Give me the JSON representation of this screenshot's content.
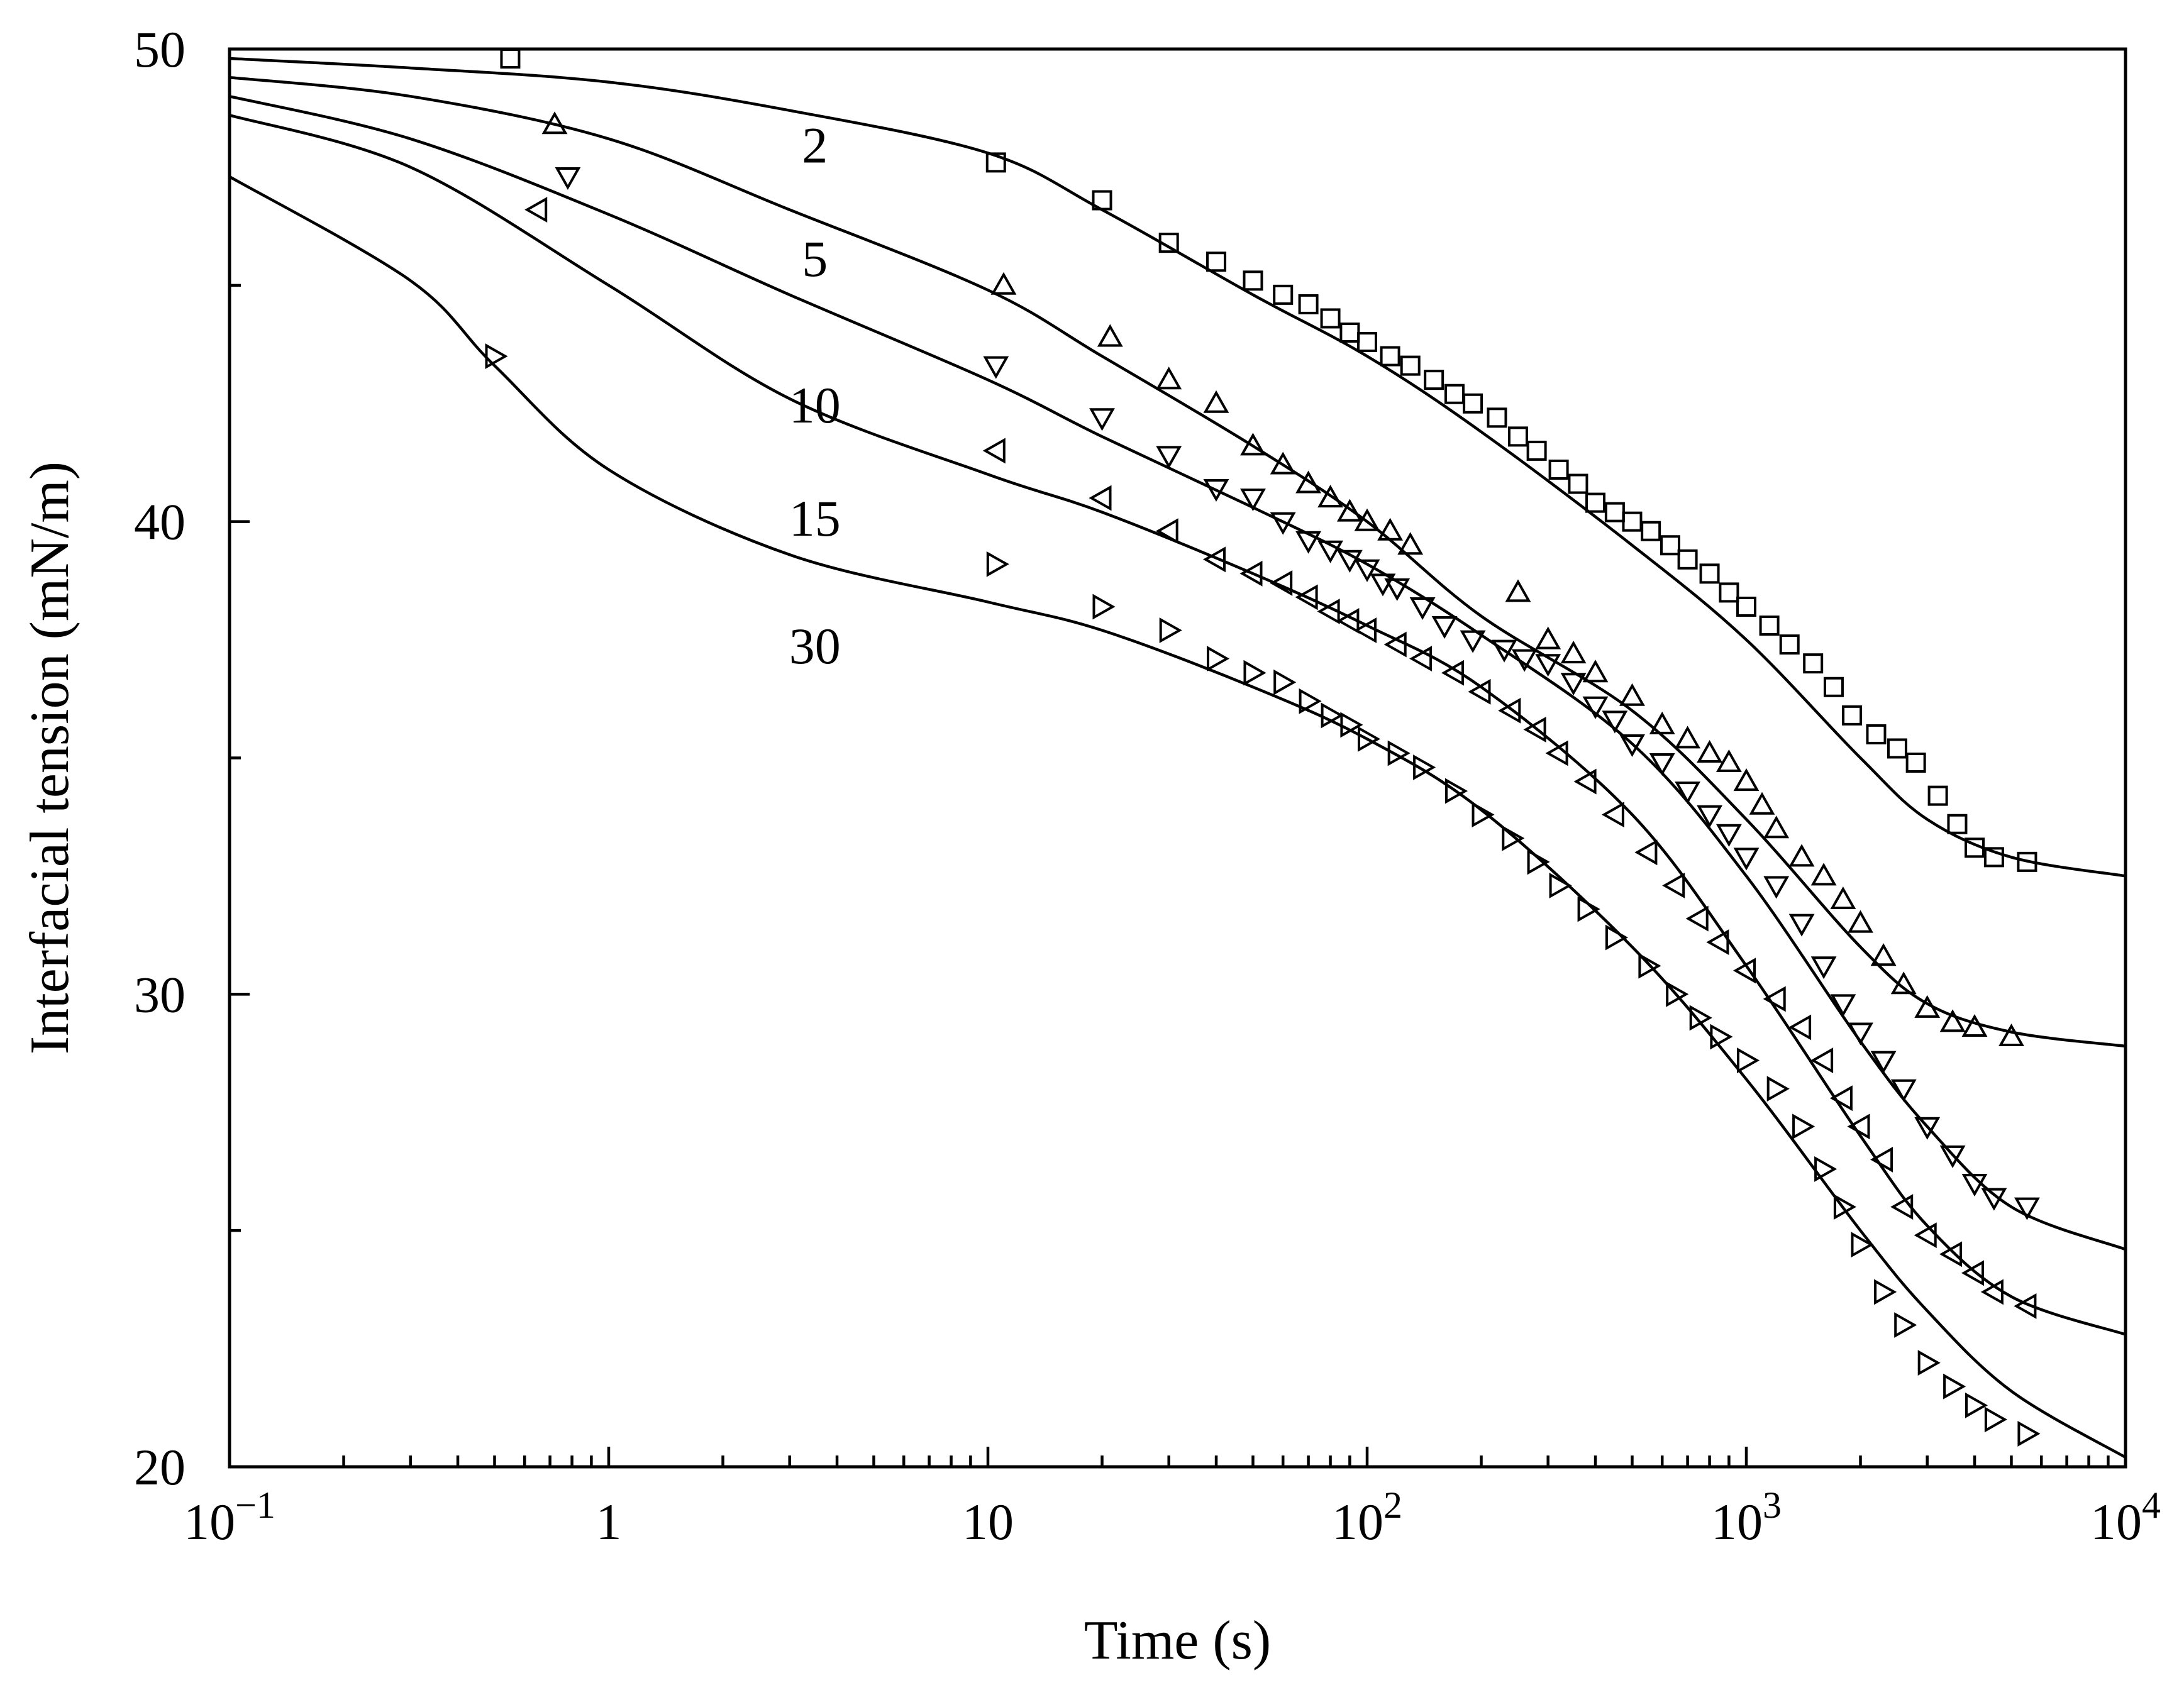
{
  "chart_data": {
    "type": "line",
    "title": "",
    "xlabel": "Time (s)",
    "ylabel": "Interfacial tension (mN/m)",
    "xscale": "log",
    "xlim": [
      0.1,
      10000
    ],
    "ylim": [
      20,
      50
    ],
    "grid": false,
    "x_tick_labels": [
      {
        "value": 0.1,
        "base": "10",
        "exp": "−1"
      },
      {
        "value": 1,
        "base": "1",
        "exp": ""
      },
      {
        "value": 10,
        "base": "10",
        "exp": ""
      },
      {
        "value": 100,
        "base": "10",
        "exp": "2"
      },
      {
        "value": 1000,
        "base": "10",
        "exp": "3"
      },
      {
        "value": 10000,
        "base": "10",
        "exp": "4"
      }
    ],
    "y_tick_labels": [
      {
        "value": 20,
        "text": "20"
      },
      {
        "value": 30,
        "text": "30"
      },
      {
        "value": 40,
        "text": "40"
      },
      {
        "value": 50,
        "text": "50"
      }
    ],
    "y_minor_ticks": [
      25,
      35,
      45
    ],
    "series": [
      {
        "name": "2",
        "marker": "square",
        "label_text": "2",
        "label_at": {
          "x": 3.0,
          "y": 47.6
        },
        "fit": [
          [
            0.1,
            49.8
          ],
          [
            0.3,
            49.6
          ],
          [
            1,
            49.3
          ],
          [
            3,
            48.7
          ],
          [
            10,
            47.8
          ],
          [
            20,
            46.6
          ],
          [
            50,
            44.8
          ],
          [
            100,
            43.5
          ],
          [
            200,
            41.9
          ],
          [
            500,
            39.5
          ],
          [
            1000,
            37.5
          ],
          [
            2000,
            35.0
          ],
          [
            3000,
            33.7
          ],
          [
            5000,
            32.9
          ],
          [
            10000,
            32.5
          ]
        ],
        "points": [
          [
            0.55,
            49.8
          ],
          [
            10.5,
            47.6
          ],
          [
            20,
            46.8
          ],
          [
            30,
            45.9
          ],
          [
            40,
            45.5
          ],
          [
            50,
            45.1
          ],
          [
            60,
            44.8
          ],
          [
            70,
            44.6
          ],
          [
            80,
            44.3
          ],
          [
            90,
            44.0
          ],
          [
            100,
            43.8
          ],
          [
            115,
            43.5
          ],
          [
            130,
            43.3
          ],
          [
            150,
            43.0
          ],
          [
            170,
            42.7
          ],
          [
            190,
            42.5
          ],
          [
            220,
            42.2
          ],
          [
            250,
            41.8
          ],
          [
            280,
            41.5
          ],
          [
            320,
            41.1
          ],
          [
            360,
            40.8
          ],
          [
            400,
            40.4
          ],
          [
            450,
            40.2
          ],
          [
            500,
            40.0
          ],
          [
            560,
            39.8
          ],
          [
            630,
            39.5
          ],
          [
            700,
            39.2
          ],
          [
            800,
            38.9
          ],
          [
            900,
            38.5
          ],
          [
            1000,
            38.2
          ],
          [
            1150,
            37.8
          ],
          [
            1300,
            37.4
          ],
          [
            1500,
            37.0
          ],
          [
            1700,
            36.5
          ],
          [
            1900,
            35.9
          ],
          [
            2200,
            35.5
          ],
          [
            2500,
            35.2
          ],
          [
            2800,
            34.9
          ],
          [
            3200,
            34.2
          ],
          [
            3600,
            33.6
          ],
          [
            4000,
            33.1
          ],
          [
            4500,
            32.9
          ],
          [
            5500,
            32.8
          ]
        ]
      },
      {
        "name": "5",
        "marker": "triangle-up",
        "label_text": "5",
        "label_at": {
          "x": 3.0,
          "y": 45.2
        },
        "fit": [
          [
            0.1,
            49.4
          ],
          [
            0.3,
            49.0
          ],
          [
            1,
            48.1
          ],
          [
            3,
            46.6
          ],
          [
            10,
            44.9
          ],
          [
            20,
            43.5
          ],
          [
            50,
            41.6
          ],
          [
            100,
            40.0
          ],
          [
            200,
            38.0
          ],
          [
            500,
            36.0
          ],
          [
            1000,
            33.7
          ],
          [
            2000,
            31.0
          ],
          [
            3000,
            29.8
          ],
          [
            5000,
            29.2
          ],
          [
            10000,
            28.9
          ]
        ],
        "points": [
          [
            0.72,
            48.4
          ],
          [
            11,
            45.0
          ],
          [
            21,
            43.9
          ],
          [
            30,
            43.0
          ],
          [
            40,
            42.5
          ],
          [
            50,
            41.6
          ],
          [
            60,
            41.2
          ],
          [
            70,
            40.8
          ],
          [
            80,
            40.5
          ],
          [
            90,
            40.2
          ],
          [
            100,
            40.0
          ],
          [
            115,
            39.8
          ],
          [
            130,
            39.5
          ],
          [
            250,
            38.5
          ],
          [
            300,
            37.5
          ],
          [
            350,
            37.2
          ],
          [
            400,
            36.8
          ],
          [
            500,
            36.3
          ],
          [
            600,
            35.7
          ],
          [
            700,
            35.4
          ],
          [
            800,
            35.1
          ],
          [
            900,
            34.9
          ],
          [
            1000,
            34.5
          ],
          [
            1100,
            34.0
          ],
          [
            1200,
            33.5
          ],
          [
            1400,
            32.9
          ],
          [
            1600,
            32.5
          ],
          [
            1800,
            32.0
          ],
          [
            2000,
            31.5
          ],
          [
            2300,
            30.8
          ],
          [
            2600,
            30.2
          ],
          [
            3000,
            29.7
          ],
          [
            3500,
            29.4
          ],
          [
            4000,
            29.3
          ],
          [
            5000,
            29.1
          ]
        ]
      },
      {
        "name": "10",
        "marker": "triangle-down",
        "label_text": "10",
        "label_at": {
          "x": 3.0,
          "y": 42.1
        },
        "fit": [
          [
            0.1,
            49.0
          ],
          [
            0.3,
            48.1
          ],
          [
            1,
            46.5
          ],
          [
            3,
            44.8
          ],
          [
            10,
            43.0
          ],
          [
            20,
            41.8
          ],
          [
            50,
            40.3
          ],
          [
            100,
            39.1
          ],
          [
            200,
            37.6
          ],
          [
            500,
            35.3
          ],
          [
            1000,
            32.5
          ],
          [
            2000,
            29.0
          ],
          [
            3000,
            27.2
          ],
          [
            5000,
            25.5
          ],
          [
            10000,
            24.6
          ]
        ],
        "points": [
          [
            0.78,
            47.3
          ],
          [
            10.5,
            43.3
          ],
          [
            20,
            42.2
          ],
          [
            30,
            41.4
          ],
          [
            40,
            40.7
          ],
          [
            50,
            40.5
          ],
          [
            60,
            40.0
          ],
          [
            70,
            39.6
          ],
          [
            80,
            39.4
          ],
          [
            90,
            39.2
          ],
          [
            100,
            39.0
          ],
          [
            110,
            38.7
          ],
          [
            120,
            38.6
          ],
          [
            140,
            38.2
          ],
          [
            160,
            37.8
          ],
          [
            190,
            37.5
          ],
          [
            230,
            37.3
          ],
          [
            260,
            37.1
          ],
          [
            300,
            37.0
          ],
          [
            350,
            36.6
          ],
          [
            400,
            36.1
          ],
          [
            450,
            35.8
          ],
          [
            500,
            35.3
          ],
          [
            600,
            34.9
          ],
          [
            700,
            34.3
          ],
          [
            800,
            33.8
          ],
          [
            900,
            33.4
          ],
          [
            1000,
            32.9
          ],
          [
            1200,
            32.3
          ],
          [
            1400,
            31.5
          ],
          [
            1600,
            30.6
          ],
          [
            1800,
            29.8
          ],
          [
            2000,
            29.2
          ],
          [
            2300,
            28.6
          ],
          [
            2600,
            28.0
          ],
          [
            3000,
            27.2
          ],
          [
            3500,
            26.6
          ],
          [
            4000,
            26.0
          ],
          [
            4500,
            25.7
          ],
          [
            5500,
            25.5
          ]
        ]
      },
      {
        "name": "15",
        "marker": "triangle-left",
        "label_text": "15",
        "label_at": {
          "x": 3.0,
          "y": 39.7
        },
        "fit": [
          [
            0.1,
            48.6
          ],
          [
            0.3,
            47.5
          ],
          [
            1,
            45.0
          ],
          [
            3,
            42.6
          ],
          [
            10,
            41.0
          ],
          [
            20,
            40.2
          ],
          [
            50,
            38.9
          ],
          [
            100,
            37.8
          ],
          [
            200,
            36.5
          ],
          [
            500,
            33.8
          ],
          [
            1000,
            30.6
          ],
          [
            2000,
            27.0
          ],
          [
            3000,
            25.1
          ],
          [
            5000,
            23.6
          ],
          [
            10000,
            22.8
          ]
        ],
        "points": [
          [
            0.65,
            46.6
          ],
          [
            10.5,
            41.5
          ],
          [
            20,
            40.5
          ],
          [
            30,
            39.8
          ],
          [
            40,
            39.2
          ],
          [
            50,
            38.9
          ],
          [
            60,
            38.7
          ],
          [
            70,
            38.4
          ],
          [
            80,
            38.1
          ],
          [
            90,
            37.9
          ],
          [
            100,
            37.7
          ],
          [
            120,
            37.4
          ],
          [
            140,
            37.1
          ],
          [
            170,
            36.8
          ],
          [
            200,
            36.4
          ],
          [
            240,
            36.0
          ],
          [
            280,
            35.6
          ],
          [
            320,
            35.1
          ],
          [
            380,
            34.5
          ],
          [
            450,
            33.8
          ],
          [
            550,
            33.0
          ],
          [
            650,
            32.3
          ],
          [
            750,
            31.6
          ],
          [
            850,
            31.1
          ],
          [
            1000,
            30.5
          ],
          [
            1200,
            29.9
          ],
          [
            1400,
            29.3
          ],
          [
            1600,
            28.6
          ],
          [
            1800,
            27.8
          ],
          [
            2000,
            27.2
          ],
          [
            2300,
            26.5
          ],
          [
            2600,
            25.5
          ],
          [
            3000,
            24.9
          ],
          [
            3500,
            24.5
          ],
          [
            4000,
            24.1
          ],
          [
            4500,
            23.7
          ],
          [
            5500,
            23.4
          ]
        ]
      },
      {
        "name": "30",
        "marker": "triangle-right",
        "label_text": "30",
        "label_at": {
          "x": 3.0,
          "y": 37.0
        },
        "fit": [
          [
            0.1,
            47.3
          ],
          [
            0.3,
            45.1
          ],
          [
            0.5,
            43.3
          ],
          [
            1,
            41.1
          ],
          [
            3,
            39.3
          ],
          [
            10,
            38.3
          ],
          [
            20,
            37.7
          ],
          [
            50,
            36.5
          ],
          [
            100,
            35.4
          ],
          [
            200,
            33.9
          ],
          [
            500,
            31.0
          ],
          [
            1000,
            28.2
          ],
          [
            2000,
            25.0
          ],
          [
            3000,
            23.3
          ],
          [
            5000,
            21.6
          ],
          [
            10000,
            20.2
          ]
        ],
        "points": [
          [
            0.5,
            43.5
          ],
          [
            10.5,
            39.1
          ],
          [
            20,
            38.2
          ],
          [
            30,
            37.7
          ],
          [
            40,
            37.1
          ],
          [
            50,
            36.8
          ],
          [
            60,
            36.6
          ],
          [
            70,
            36.2
          ],
          [
            80,
            35.9
          ],
          [
            90,
            35.7
          ],
          [
            100,
            35.4
          ],
          [
            120,
            35.1
          ],
          [
            140,
            34.8
          ],
          [
            170,
            34.3
          ],
          [
            200,
            33.8
          ],
          [
            240,
            33.3
          ],
          [
            280,
            32.8
          ],
          [
            320,
            32.3
          ],
          [
            380,
            31.8
          ],
          [
            450,
            31.2
          ],
          [
            550,
            30.6
          ],
          [
            650,
            30.0
          ],
          [
            750,
            29.5
          ],
          [
            850,
            29.1
          ],
          [
            1000,
            28.6
          ],
          [
            1200,
            28.0
          ],
          [
            1400,
            27.2
          ],
          [
            1600,
            26.3
          ],
          [
            1800,
            25.5
          ],
          [
            2000,
            24.7
          ],
          [
            2300,
            23.7
          ],
          [
            2600,
            23.0
          ],
          [
            3000,
            22.2
          ],
          [
            3500,
            21.7
          ],
          [
            4000,
            21.3
          ],
          [
            4500,
            21.0
          ],
          [
            5500,
            20.7
          ]
        ]
      }
    ]
  }
}
